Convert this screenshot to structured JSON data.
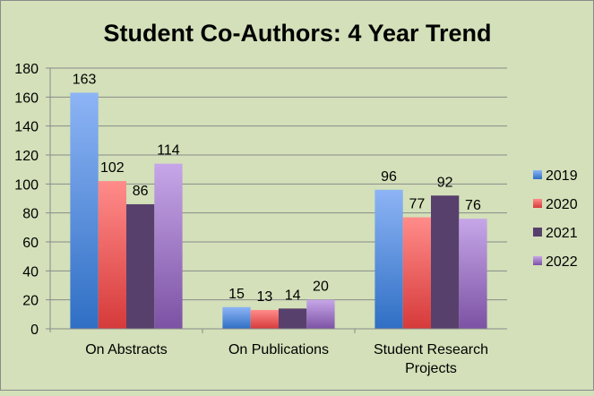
{
  "chart_data": {
    "type": "bar",
    "title": "Student Co-Authors: 4 Year Trend",
    "categories": [
      "On Abstracts",
      "On Publications",
      "Student Research Projects"
    ],
    "series": [
      {
        "name": "2019",
        "values": [
          163,
          15,
          96
        ],
        "color_top": "#8db4f5",
        "color_bottom": "#2f6fc4"
      },
      {
        "name": "2020",
        "values": [
          102,
          13,
          77
        ],
        "color_top": "#ff8c8a",
        "color_bottom": "#d63a3a"
      },
      {
        "name": "2021",
        "values": [
          86,
          14,
          92
        ],
        "color_top": "#57406c",
        "color_bottom": "#57406c"
      },
      {
        "name": "2022",
        "values": [
          114,
          20,
          76
        ],
        "color_top": "#c6a6e8",
        "color_bottom": "#7c52a4"
      }
    ],
    "ylim": [
      0,
      180
    ],
    "yticks": [
      0,
      20,
      40,
      60,
      80,
      100,
      120,
      140,
      160,
      180
    ],
    "xlabel": "",
    "ylabel": "",
    "grid": true,
    "legend": "right",
    "data_labels": true
  }
}
